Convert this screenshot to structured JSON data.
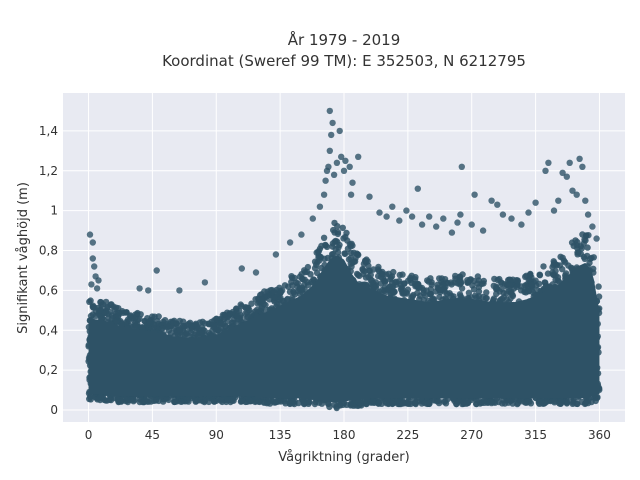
{
  "chart_data": {
    "type": "scatter",
    "title": "År 1979 - 2019",
    "subtitle": "Koordinat (Sweref 99 TM): E 352503, N 6212795",
    "xlabel": "Vågriktning (grader)",
    "ylabel": "Signifikant våghöjd (m)",
    "xlim": [
      -18,
      378
    ],
    "ylim": [
      -0.06,
      1.59
    ],
    "xticks": [
      0,
      45,
      90,
      135,
      180,
      225,
      270,
      315,
      360
    ],
    "xtick_labels": [
      "0",
      "45",
      "90",
      "135",
      "180",
      "225",
      "270",
      "315",
      "360"
    ],
    "yticks": [
      0,
      0.2,
      0.4,
      0.6,
      0.8,
      1,
      1.2,
      1.4
    ],
    "ytick_labels": [
      "0",
      "0,2",
      "0,4",
      "0,6",
      "0,8",
      "1",
      "1,2",
      "1,4"
    ],
    "grid": true,
    "marker_color": "#2e5266",
    "plot_background": "#e8eaf2",
    "dense_band": {
      "description_x": "direction in degrees",
      "x": [
        0,
        10,
        20,
        30,
        45,
        60,
        75,
        90,
        100,
        110,
        120,
        130,
        140,
        150,
        160,
        165,
        170,
        175,
        180,
        185,
        190,
        200,
        210,
        225,
        240,
        255,
        270,
        285,
        300,
        310,
        320,
        330,
        340,
        345,
        350,
        355,
        360
      ],
      "lower": [
        0.05,
        0.05,
        0.04,
        0.04,
        0.04,
        0.04,
        0.04,
        0.04,
        0.04,
        0.04,
        0.04,
        0.03,
        0.03,
        0.03,
        0.02,
        0.02,
        0.01,
        0.01,
        0.01,
        0.02,
        0.02,
        0.03,
        0.03,
        0.03,
        0.03,
        0.03,
        0.03,
        0.03,
        0.03,
        0.03,
        0.03,
        0.03,
        0.03,
        0.03,
        0.03,
        0.04,
        0.05
      ],
      "upper": [
        0.56,
        0.55,
        0.52,
        0.5,
        0.48,
        0.45,
        0.44,
        0.46,
        0.5,
        0.54,
        0.58,
        0.62,
        0.66,
        0.7,
        0.78,
        0.86,
        0.92,
        0.95,
        0.92,
        0.84,
        0.78,
        0.74,
        0.7,
        0.68,
        0.66,
        0.68,
        0.68,
        0.66,
        0.66,
        0.68,
        0.72,
        0.76,
        0.84,
        0.88,
        0.9,
        0.85,
        0.6
      ]
    },
    "outliers": [
      {
        "x": 1,
        "y": 0.88
      },
      {
        "x": 3,
        "y": 0.84
      },
      {
        "x": 3,
        "y": 0.76
      },
      {
        "x": 4,
        "y": 0.72
      },
      {
        "x": 5,
        "y": 0.67
      },
      {
        "x": 7,
        "y": 0.65
      },
      {
        "x": 2,
        "y": 0.63
      },
      {
        "x": 6,
        "y": 0.61
      },
      {
        "x": 48,
        "y": 0.7
      },
      {
        "x": 82,
        "y": 0.64
      },
      {
        "x": 64,
        "y": 0.6
      },
      {
        "x": 36,
        "y": 0.61
      },
      {
        "x": 42,
        "y": 0.6
      },
      {
        "x": 108,
        "y": 0.71
      },
      {
        "x": 118,
        "y": 0.69
      },
      {
        "x": 132,
        "y": 0.78
      },
      {
        "x": 142,
        "y": 0.84
      },
      {
        "x": 150,
        "y": 0.88
      },
      {
        "x": 158,
        "y": 0.96
      },
      {
        "x": 163,
        "y": 1.02
      },
      {
        "x": 166,
        "y": 1.08
      },
      {
        "x": 167,
        "y": 1.15
      },
      {
        "x": 168,
        "y": 1.2
      },
      {
        "x": 169,
        "y": 1.22
      },
      {
        "x": 170,
        "y": 1.3
      },
      {
        "x": 170,
        "y": 1.5
      },
      {
        "x": 172,
        "y": 1.44
      },
      {
        "x": 171,
        "y": 1.38
      },
      {
        "x": 173,
        "y": 1.18
      },
      {
        "x": 175,
        "y": 1.24
      },
      {
        "x": 177,
        "y": 1.4
      },
      {
        "x": 178,
        "y": 1.27
      },
      {
        "x": 180,
        "y": 1.2
      },
      {
        "x": 181,
        "y": 1.25
      },
      {
        "x": 184,
        "y": 1.22
      },
      {
        "x": 185,
        "y": 1.08
      },
      {
        "x": 186,
        "y": 1.14
      },
      {
        "x": 190,
        "y": 1.27
      },
      {
        "x": 198,
        "y": 1.07
      },
      {
        "x": 205,
        "y": 0.99
      },
      {
        "x": 210,
        "y": 0.97
      },
      {
        "x": 214,
        "y": 1.02
      },
      {
        "x": 219,
        "y": 0.95
      },
      {
        "x": 224,
        "y": 1.0
      },
      {
        "x": 228,
        "y": 0.97
      },
      {
        "x": 232,
        "y": 1.11
      },
      {
        "x": 235,
        "y": 0.93
      },
      {
        "x": 240,
        "y": 0.97
      },
      {
        "x": 245,
        "y": 0.92
      },
      {
        "x": 250,
        "y": 0.96
      },
      {
        "x": 256,
        "y": 0.89
      },
      {
        "x": 260,
        "y": 0.94
      },
      {
        "x": 262,
        "y": 0.98
      },
      {
        "x": 263,
        "y": 1.22
      },
      {
        "x": 270,
        "y": 0.93
      },
      {
        "x": 272,
        "y": 1.08
      },
      {
        "x": 278,
        "y": 0.9
      },
      {
        "x": 284,
        "y": 1.05
      },
      {
        "x": 288,
        "y": 1.03
      },
      {
        "x": 292,
        "y": 0.98
      },
      {
        "x": 298,
        "y": 0.96
      },
      {
        "x": 305,
        "y": 0.93
      },
      {
        "x": 310,
        "y": 0.99
      },
      {
        "x": 315,
        "y": 1.04
      },
      {
        "x": 322,
        "y": 1.2
      },
      {
        "x": 324,
        "y": 1.24
      },
      {
        "x": 328,
        "y": 1.0
      },
      {
        "x": 331,
        "y": 1.05
      },
      {
        "x": 334,
        "y": 1.19
      },
      {
        "x": 337,
        "y": 1.17
      },
      {
        "x": 339,
        "y": 1.24
      },
      {
        "x": 341,
        "y": 1.1
      },
      {
        "x": 344,
        "y": 1.08
      },
      {
        "x": 346,
        "y": 1.26
      },
      {
        "x": 348,
        "y": 1.22
      },
      {
        "x": 350,
        "y": 1.05
      },
      {
        "x": 352,
        "y": 0.98
      },
      {
        "x": 355,
        "y": 0.92
      },
      {
        "x": 358,
        "y": 0.86
      }
    ]
  }
}
